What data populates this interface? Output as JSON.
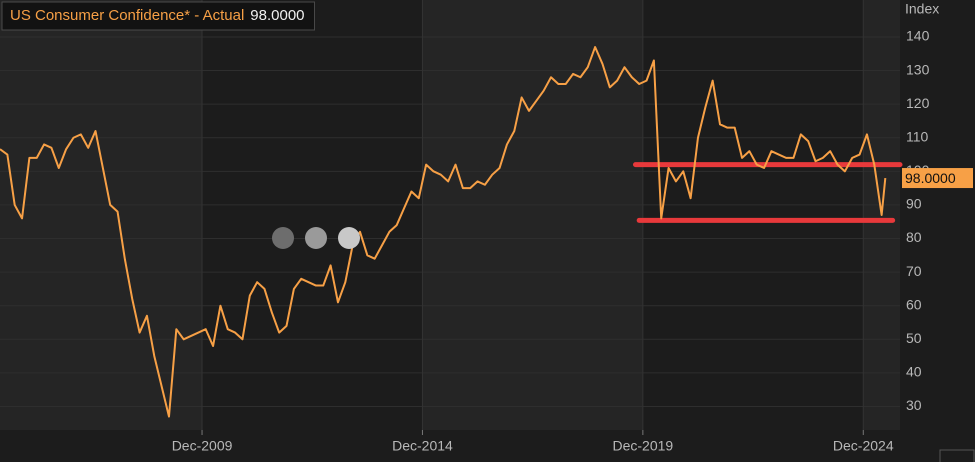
{
  "chart_data": {
    "type": "line",
    "y_label": "Index",
    "x": [
      "May-2005",
      "Jul-2005",
      "Sep-2005",
      "Nov-2005",
      "Jan-2006",
      "Mar-2006",
      "May-2006",
      "Jul-2006",
      "Sep-2006",
      "Nov-2006",
      "Jan-2007",
      "Mar-2007",
      "May-2007",
      "Jul-2007",
      "Sep-2007",
      "Nov-2007",
      "Jan-2008",
      "Mar-2008",
      "May-2008",
      "Jul-2008",
      "Sep-2008",
      "Nov-2008",
      "Jan-2009",
      "Mar-2009",
      "May-2009",
      "Jul-2009",
      "Sep-2009",
      "Nov-2009",
      "Jan-2010",
      "Mar-2010",
      "May-2010",
      "Jul-2010",
      "Sep-2010",
      "Nov-2010",
      "Jan-2011",
      "Mar-2011",
      "May-2011",
      "Jul-2011",
      "Sep-2011",
      "Nov-2011",
      "Jan-2012",
      "Mar-2012",
      "May-2012",
      "Jul-2012",
      "Sep-2012",
      "Nov-2012",
      "Jan-2013",
      "Mar-2013",
      "May-2013",
      "Jul-2013",
      "Sep-2013",
      "Nov-2013",
      "Jan-2014",
      "Mar-2014",
      "May-2014",
      "Jul-2014",
      "Sep-2014",
      "Nov-2014",
      "Jan-2015",
      "Mar-2015",
      "May-2015",
      "Jul-2015",
      "Sep-2015",
      "Nov-2015",
      "Jan-2016",
      "Mar-2016",
      "May-2016",
      "Jul-2016",
      "Sep-2016",
      "Nov-2016",
      "Jan-2017",
      "Mar-2017",
      "May-2017",
      "Jul-2017",
      "Sep-2017",
      "Nov-2017",
      "Jan-2018",
      "Mar-2018",
      "May-2018",
      "Jul-2018",
      "Sep-2018",
      "Nov-2018",
      "Jan-2019",
      "Mar-2019",
      "May-2019",
      "Jul-2019",
      "Sep-2019",
      "Nov-2019",
      "Jan-2020",
      "Mar-2020",
      "May-2020",
      "Jul-2020",
      "Sep-2020",
      "Nov-2020",
      "Jan-2021",
      "Mar-2021",
      "May-2021",
      "Jul-2021",
      "Sep-2021",
      "Nov-2021",
      "Jan-2022",
      "Mar-2022",
      "May-2022",
      "Jul-2022",
      "Sep-2022",
      "Nov-2022",
      "Jan-2023",
      "Mar-2023",
      "May-2023",
      "Jul-2023",
      "Sep-2023",
      "Nov-2023",
      "Jan-2024",
      "Mar-2024",
      "May-2024",
      "Jul-2024",
      "Sep-2024",
      "Nov-2024",
      "Jan-2025",
      "Mar-2025",
      "May-2025",
      "Jun-2025"
    ],
    "series": [
      {
        "name": "US Consumer Confidence* - Actual",
        "color": "#f7a046",
        "values": [
          106.6,
          105,
          90,
          86,
          104,
          104,
          108,
          107,
          101,
          106.6,
          110,
          111,
          107,
          112,
          101,
          90,
          88,
          73.8,
          62,
          52,
          57,
          45,
          36,
          27,
          53,
          50,
          51,
          52,
          53,
          48,
          60,
          53,
          52,
          50,
          63,
          67,
          65,
          58,
          52,
          54,
          65,
          68,
          67,
          66,
          66,
          72,
          61,
          67,
          78,
          82,
          75,
          74,
          78,
          82,
          84,
          89,
          94,
          92,
          102,
          100,
          99,
          97,
          102,
          95,
          95,
          97,
          96,
          99,
          101,
          108,
          112,
          122,
          118,
          121,
          124,
          128,
          126,
          126,
          129,
          128,
          131,
          137,
          132,
          125,
          127,
          131,
          128,
          126,
          127,
          133,
          86,
          101,
          97,
          100,
          92,
          110,
          119,
          127,
          114,
          113,
          113,
          104,
          106,
          102,
          101,
          106,
          105,
          104,
          104,
          111,
          109,
          103,
          104,
          106,
          102,
          100,
          104,
          105,
          111,
          102,
          87,
          98
        ],
        "last_value_label": "98.0000"
      }
    ],
    "xlim": [
      "May-2005",
      "Oct-2025"
    ],
    "xticks": [
      "Dec-2009",
      "Dec-2014",
      "Dec-2019",
      "Dec-2024"
    ],
    "ylim": [
      23,
      151
    ],
    "yticks": [
      30,
      40,
      50,
      60,
      70,
      80,
      90,
      100,
      110,
      120,
      130,
      140
    ],
    "grid": true,
    "reference_lines": [
      {
        "value": 102,
        "color": "#e8393b",
        "x": [
          "Oct-2019",
          "Oct-2025"
        ]
      },
      {
        "value": 85.4,
        "color": "#e8393b",
        "x": [
          "Nov-2019",
          "Aug-2025"
        ]
      }
    ]
  }
}
